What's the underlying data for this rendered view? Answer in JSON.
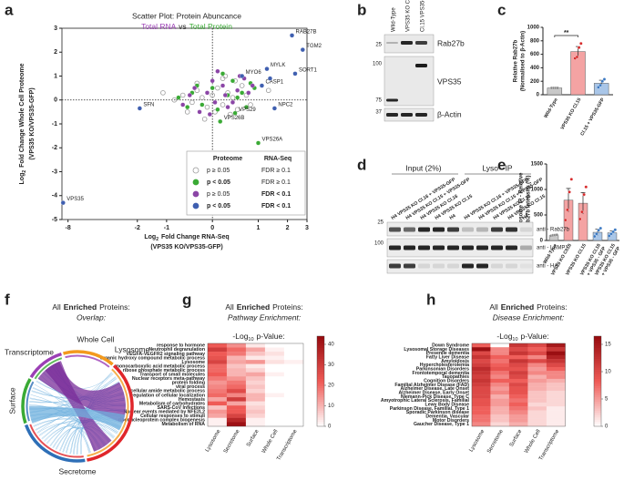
{
  "panel_labels": [
    "a",
    "b",
    "c",
    "d",
    "e",
    "f",
    "g",
    "h"
  ],
  "chart_data": [
    {
      "type": "scatter",
      "title": "Scatter Plot: Protein Abuncance",
      "subtitle_parts": [
        "Total RNA",
        "vs",
        "Total Protein"
      ],
      "subtitle_colors": [
        "#9b3fb5",
        "#222222",
        "#3aaa35"
      ],
      "x_label_parts": [
        "Log",
        "2",
        "Fold Change RNA-Seq"
      ],
      "x_label_line2": "(VPS35 KO/VPS35-GFP)",
      "y_label_parts": [
        "Log",
        "2",
        "Fold Change Whole Cell Proteome"
      ],
      "y_label_line2": "(VPS35 KO/VPS35-GFP)",
      "xscale": "asinh",
      "xlim": [
        -9,
        3
      ],
      "xticks": [
        -8,
        -2,
        -1,
        0,
        1,
        2,
        3
      ],
      "ylim": [
        -5,
        3
      ],
      "yticks": [
        -5,
        -4,
        -3,
        -2,
        -1,
        0,
        1,
        2,
        3
      ],
      "zero_lines": true,
      "series": [
        {
          "color": "#9a9a9a",
          "hollow": true,
          "x": [
            -0.6,
            -0.4,
            -0.3,
            -0.2,
            -0.1,
            0,
            0.1,
            0.2,
            0.3,
            0.4,
            0.5,
            0.6,
            -0.5,
            -0.3,
            0.2,
            0.35,
            0.7,
            -0.15,
            0.05,
            0.25,
            -0.8,
            0.8,
            1.3,
            -1.1,
            0.45
          ],
          "y": [
            0.2,
            -0.1,
            0.4,
            0.1,
            -0.3,
            0.2,
            0.5,
            -0.2,
            0.3,
            0.1,
            -0.4,
            0.6,
            -0.5,
            0.7,
            0.9,
            -0.6,
            0.2,
            -0.8,
            -0.5,
            1.0,
            0.0,
            -0.2,
            0.4,
            0.3,
            0.8
          ]
        },
        {
          "color": "#3aaa35",
          "x": [
            -0.7,
            -0.4,
            -0.2,
            0.0,
            0.1,
            0.3,
            0.4,
            0.6,
            0.7,
            -0.3,
            0.5,
            0.15,
            0.45,
            1.0,
            0.9,
            -0.5,
            0.2,
            0.8
          ],
          "y": [
            0.1,
            0.3,
            -0.2,
            0.5,
            -0.4,
            0.2,
            0.8,
            0.3,
            -0.3,
            0.6,
            0.1,
            -0.9,
            -0.55,
            -1.8,
            0.5,
            -0.3,
            1.1,
            0.7
          ],
          "point_labels": [
            null,
            null,
            null,
            null,
            null,
            null,
            null,
            null,
            null,
            null,
            null,
            "VPS26B",
            "VPS29",
            "VPS26A",
            null,
            null,
            null,
            null
          ]
        },
        {
          "color": "#8b45a6",
          "x": [
            -0.6,
            -0.35,
            -0.1,
            0.05,
            0.2,
            0.3,
            0.5,
            0.65,
            -0.25,
            0.1,
            0.4,
            0.75,
            -0.45,
            0.55,
            0.0,
            0.25,
            -0.05,
            0.85
          ],
          "y": [
            -0.2,
            0.5,
            0.3,
            -0.1,
            0.6,
            -0.3,
            0.4,
            0.9,
            -0.5,
            1.2,
            -0.1,
            0.3,
            0.2,
            1.0,
            0.8,
            0.2,
            -0.6,
            0.6
          ]
        },
        {
          "color": "#3f5fb0",
          "x": [
            2.2,
            2.75,
            2.35,
            1.25,
            0.6,
            1.1,
            1.5,
            -1.9,
            -8.8,
            1.35
          ],
          "y": [
            2.7,
            2.1,
            1.1,
            1.3,
            1.0,
            0.6,
            -0.35,
            -0.35,
            -4.3,
            0.9
          ],
          "point_labels": [
            "RAB27B",
            "TGM2",
            "SORT1",
            "MYLK",
            "MYO6",
            "CASP1",
            "NPC2",
            "SFN",
            "VPS35",
            null
          ]
        }
      ],
      "legend": {
        "headers": [
          "Proteome",
          "RNA-Seq"
        ],
        "rows": [
          [
            "p ≥ 0.05",
            "FDR ≥ 0.1"
          ],
          [
            "p < 0.05",
            "FDR ≥ 0.1"
          ],
          [
            "p ≥ 0.05",
            "FDR < 0.1"
          ],
          [
            "p < 0.05",
            "FDR < 0.1"
          ]
        ]
      }
    },
    {
      "type": "bar",
      "y_label": [
        "Relative Rab27b",
        "(Normalised to β-Actin)"
      ],
      "categories": [
        "Wild-Type",
        "VPS35 KO Cl.15",
        "Cl.15 + VPS35-GFP"
      ],
      "values": [
        100,
        640,
        170
      ],
      "errors": [
        5,
        75,
        45
      ],
      "colors": [
        "#c8c8c8",
        "#f4a3a3",
        "#a9c6e8"
      ],
      "point_colors": [
        "#8a8a8a",
        "#d62728",
        "#3a78c2"
      ],
      "points": [
        [
          100,
          100,
          100,
          100
        ],
        [
          540,
          560,
          700,
          760
        ],
        [
          110,
          140,
          200,
          230
        ]
      ],
      "ylim": [
        0,
        1000
      ],
      "yticks": [
        0,
        200,
        400,
        600,
        800,
        1000
      ],
      "significance": "**"
    },
    {
      "type": "bar",
      "y_label": [
        "Lysosome IP - Relative",
        "Rab27b Intensity (%)"
      ],
      "categories": [
        [
          "Wild-Type"
        ],
        [
          "VPS35 KO Cl.16"
        ],
        [
          "VPS35 KO Cl.15"
        ],
        [
          "VPS35 KO Cl.16",
          "+ VPS35 - GFP"
        ],
        [
          "VPS35 KO Cl.15",
          "+ VPS35 - GFP"
        ]
      ],
      "values": [
        100,
        790,
        730,
        160,
        150
      ],
      "errors": [
        15,
        230,
        210,
        60,
        40
      ],
      "colors": [
        "#c8c8c8",
        "#f4a3a3",
        "#f4a3a3",
        "#a9c6e8",
        "#a9c6e8"
      ],
      "point_colors": [
        "#8a8a8a",
        "#d62728",
        "#d62728",
        "#3a78c2",
        "#3a78c2"
      ],
      "points": [
        [
          90,
          100,
          105,
          110
        ],
        [
          400,
          600,
          950,
          1200
        ],
        [
          420,
          560,
          900,
          1050
        ],
        [
          80,
          130,
          200,
          240
        ],
        [
          90,
          130,
          170,
          210
        ]
      ],
      "ylim": [
        0,
        1500
      ],
      "yticks": [
        0,
        500,
        1000,
        1500
      ]
    },
    {
      "type": "heatmap",
      "title_parts": [
        "All",
        "Enriched",
        "Proteins:"
      ],
      "subtitle": "Pathway Enrichment:",
      "scale_label_parts": [
        "-Log",
        "10",
        "p-Value:"
      ],
      "rows": [
        "response to hormone",
        "Neutrophil degranulation",
        "VEGFA-VEGFR2 signaling pathway",
        "organic hydroxy compound metabolic process",
        "Lysosome",
        "monocarboxylic acid metabolic process",
        "ribose phosphate metabolic process",
        "Transport of small molecules",
        "Nuclear receptors meta-pathway",
        "protein folding",
        "viral process",
        "cellular amide metabolic process",
        "regulation of cellular localization",
        "Hemostasis",
        "Metabolism of carbohydrates",
        "SARS-CoV Infections",
        "Nuclear events mediated by NFE2L2",
        "Cellular responses to stimuli",
        "ribonucleoprotein complex biogenesis",
        "Metabolism of RNA"
      ],
      "columns": [
        "Lysosome",
        "Secretome",
        "Surface",
        "Whole Cell",
        "Transcriptome"
      ],
      "column_colors": [
        "#e0262b",
        "#2e6fb7",
        "#3aaa35",
        "#f39a1e",
        "#9b3fb5"
      ],
      "values": [
        [
          22,
          15,
          3,
          0,
          0
        ],
        [
          30,
          20,
          12,
          2,
          0
        ],
        [
          22,
          18,
          8,
          4,
          0
        ],
        [
          24,
          10,
          3,
          2,
          0
        ],
        [
          28,
          12,
          14,
          4,
          2
        ],
        [
          20,
          8,
          3,
          0,
          0
        ],
        [
          20,
          10,
          6,
          0,
          0
        ],
        [
          22,
          10,
          12,
          2,
          0
        ],
        [
          18,
          14,
          8,
          0,
          0
        ],
        [
          14,
          18,
          6,
          0,
          0
        ],
        [
          16,
          20,
          8,
          0,
          0
        ],
        [
          18,
          26,
          6,
          0,
          0
        ],
        [
          20,
          16,
          10,
          2,
          0
        ],
        [
          12,
          30,
          10,
          0,
          0
        ],
        [
          22,
          12,
          4,
          0,
          0
        ],
        [
          8,
          22,
          6,
          0,
          0
        ],
        [
          14,
          22,
          8,
          0,
          0
        ],
        [
          12,
          28,
          6,
          0,
          0
        ],
        [
          2,
          36,
          2,
          0,
          0
        ],
        [
          2,
          42,
          2,
          0,
          0
        ]
      ],
      "clim": [
        0,
        44
      ],
      "cticks": [
        0,
        10,
        20,
        30,
        40
      ]
    },
    {
      "type": "heatmap",
      "title_parts": [
        "All",
        "Enriched",
        "Proteins:"
      ],
      "subtitle": "Disease Enrichment:",
      "scale_label_parts": [
        "-Log",
        "10",
        "p-Value:"
      ],
      "rows": [
        "Down Syndrome",
        "Lysosomal Storage Diseases",
        "Presenile dementia",
        "Fatty Liver Disease",
        "Amyloidosis",
        "Hypercholesterolemia",
        "Parkinsonian Disorders",
        "Frontotemporal dementia",
        "Tauopathies",
        "Cognition Disorders",
        "Familial Alzheimer Disease (FAD)",
        "Alzheimer Disease, Late Onset",
        "Alzheimer Disease, Early Onset",
        "Niemann-Pick Disease, Type C",
        "Amyotrophic Lateral Sclerosis, Familial",
        "Lewy Body Disease",
        "Parkinson Disease, Familial, Type 1",
        "Sporadic Parkinson disease",
        "Dementia, Vascular",
        "Motor Disorders",
        "Gaucher Disease, Type 1"
      ],
      "columns": [
        "Lysosome",
        "Secretome",
        "Surface",
        "Whole Cell",
        "Transcriptome"
      ],
      "column_colors": [
        "#e0262b",
        "#2e6fb7",
        "#3aaa35",
        "#f39a1e",
        "#9b3fb5"
      ],
      "values": [
        [
          8,
          0,
          12,
          10,
          15
        ],
        [
          16,
          6,
          10,
          8,
          12
        ],
        [
          10,
          6,
          12,
          10,
          16
        ],
        [
          12,
          8,
          8,
          6,
          14
        ],
        [
          10,
          7,
          12,
          10,
          12
        ],
        [
          11,
          8,
          10,
          6,
          10
        ],
        [
          13,
          9,
          9,
          5,
          8
        ],
        [
          12,
          7,
          11,
          6,
          6
        ],
        [
          11,
          6,
          10,
          4,
          6
        ],
        [
          12,
          8,
          8,
          5,
          4
        ],
        [
          11,
          6,
          10,
          4,
          3
        ],
        [
          10,
          5,
          9,
          4,
          3
        ],
        [
          10,
          6,
          9,
          3,
          2
        ],
        [
          10,
          4,
          8,
          3,
          2
        ],
        [
          9,
          5,
          7,
          3,
          2
        ],
        [
          9,
          5,
          8,
          2,
          2
        ],
        [
          8,
          4,
          7,
          3,
          1
        ],
        [
          8,
          4,
          6,
          2,
          1
        ],
        [
          7,
          3,
          5,
          2,
          1
        ],
        [
          7,
          3,
          5,
          2,
          1
        ],
        [
          6,
          2,
          4,
          2,
          1
        ]
      ],
      "clim": [
        0,
        16.5
      ],
      "cticks": [
        0,
        5,
        10,
        15
      ]
    }
  ],
  "blot_b": {
    "lanes": [
      "Wild-Type",
      "VPS35 KO Cl.15",
      "Cl.15 VPS35-GFP"
    ],
    "markers": [
      "25",
      "100",
      "75",
      "37"
    ],
    "antibodies": [
      "Rab27b",
      "VPS35",
      "β-Actin"
    ]
  },
  "blot_d": {
    "groups": [
      "Input (2%)",
      "Lyso - IP"
    ],
    "lanes": [
      "H4 VPS35 KO Cl.16 + VPS35-GFP",
      "H4 VPS35 KO Cl.15 + VPS35-GFP",
      "H4 VPS35 KO Cl.16",
      "H4 VPS35 KO Cl.15",
      "H4",
      "H4 VPS35 KO Cl.16 + VPS35-GFP",
      "H4 VPS35 KO Cl.15 + VPS35-GFP",
      "H4 VPS35 KO Cl.16",
      "H4 VPS35 KO Cl.15",
      "H4"
    ],
    "markers": [
      "25",
      "100"
    ],
    "antibodies": [
      "anti - Rab27b",
      "anti - LAMP1",
      "anti - HA"
    ]
  },
  "chord_f": {
    "title_parts": [
      "All",
      "Enriched",
      "Proteins:"
    ],
    "subtitle": "Overlap:",
    "sets": [
      "Lysosome",
      "Whole Cell",
      "Transcriptome",
      "Surface",
      "Secretome"
    ],
    "set_colors": [
      "#e0262b",
      "#f39a1e",
      "#9b3fb5",
      "#3aaa35",
      "#2e6fb7"
    ]
  }
}
